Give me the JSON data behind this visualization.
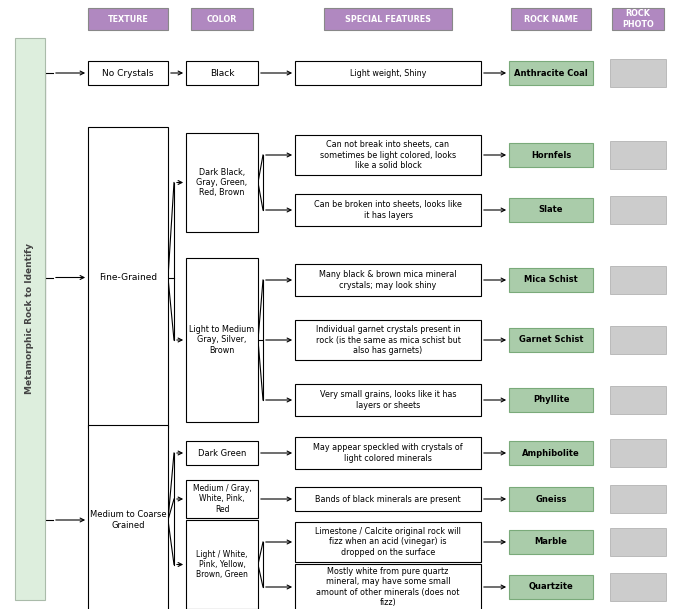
{
  "title": "Metamorphic Rock to Identify",
  "header_color": "#b088c0",
  "bg_color": "#ffffff",
  "left_bar_color": "#ddeedd",
  "rock_name_color": "#aaccaa",
  "rock_name_border": "#7aaa7a",
  "photo_color": "#cccccc",
  "photo_border": "#aaaaaa",
  "rocks": [
    {
      "name": "Anthracite Coal",
      "feature": "Light weight, Shiny"
    },
    {
      "name": "Hornfels",
      "feature": "Can not break into sheets, can\nsometimes be light colored, looks\nlike a solid block"
    },
    {
      "name": "Slate",
      "feature": "Can be broken into sheets, looks like\nit has layers"
    },
    {
      "name": "Mica Schist",
      "feature": "Many black & brown mica mineral\ncrystals; may look shiny"
    },
    {
      "name": "Garnet Schist",
      "feature": "Individual garnet crystals present in\nrock (is the same as mica schist but\nalso has garnets)"
    },
    {
      "name": "Phyllite",
      "feature": "Very small grains, looks like it has\nlayers or sheets"
    },
    {
      "name": "Amphibolite",
      "feature": "May appear speckled with crystals of\nlight colored minerals"
    },
    {
      "name": "Gneiss",
      "feature": "Bands of black minerals are present"
    },
    {
      "name": "Marble",
      "feature": "Limestone / Calcite original rock will\nfizz when an acid (vinegar) is\ndropped on the surface"
    },
    {
      "name": "Quartzite",
      "feature": "Mostly white from pure quartz\nmineral, may have some small\namount of other minerals (does not\nfizz)"
    }
  ]
}
